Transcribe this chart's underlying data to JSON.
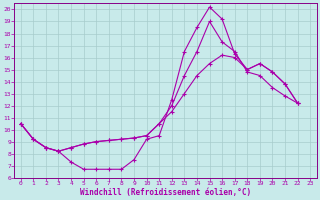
{
  "xlabel": "Windchill (Refroidissement éolien,°C)",
  "bg_color": "#c8eaea",
  "grid_color": "#a8cccc",
  "line_color": "#aa00aa",
  "spine_color": "#880088",
  "xlim": [
    -0.5,
    23.5
  ],
  "ylim": [
    6,
    20.5
  ],
  "xticks": [
    0,
    1,
    2,
    3,
    4,
    5,
    6,
    7,
    8,
    9,
    10,
    11,
    12,
    13,
    14,
    15,
    16,
    17,
    18,
    19,
    20,
    21,
    22,
    23
  ],
  "yticks": [
    6,
    7,
    8,
    9,
    10,
    11,
    12,
    13,
    14,
    15,
    16,
    17,
    18,
    19,
    20
  ],
  "line1_x": [
    0,
    1,
    2,
    3,
    4,
    5,
    6,
    7,
    8,
    9,
    10,
    11,
    12,
    13,
    14,
    15,
    16,
    17,
    18,
    19,
    20,
    21,
    22
  ],
  "line1_y": [
    10.5,
    9.2,
    8.5,
    8.2,
    7.3,
    6.7,
    6.7,
    6.7,
    6.7,
    7.5,
    9.2,
    9.5,
    12.5,
    16.5,
    18.5,
    20.2,
    19.2,
    16.3,
    15.0,
    15.5,
    14.8,
    13.8,
    12.2
  ],
  "line2_x": [
    0,
    1,
    2,
    3,
    4,
    5,
    6,
    7,
    8,
    9,
    10,
    11,
    12,
    13,
    14,
    15,
    16,
    17,
    18,
    19,
    20,
    21,
    22
  ],
  "line2_y": [
    10.5,
    9.2,
    8.5,
    8.2,
    8.5,
    8.8,
    9.0,
    9.1,
    9.2,
    9.3,
    9.5,
    10.5,
    11.5,
    13.0,
    14.5,
    15.5,
    16.2,
    16.0,
    15.0,
    15.5,
    14.8,
    13.8,
    12.2
  ],
  "line3_x": [
    0,
    1,
    2,
    3,
    4,
    5,
    6,
    7,
    8,
    9,
    10,
    11,
    12,
    13,
    14,
    15,
    16,
    17,
    18,
    19,
    20,
    21,
    22
  ],
  "line3_y": [
    10.5,
    9.2,
    8.5,
    8.2,
    8.5,
    8.8,
    9.0,
    9.1,
    9.2,
    9.3,
    9.5,
    10.5,
    12.0,
    14.5,
    16.5,
    19.0,
    17.3,
    16.5,
    14.8,
    14.5,
    13.5,
    12.8,
    12.2
  ]
}
